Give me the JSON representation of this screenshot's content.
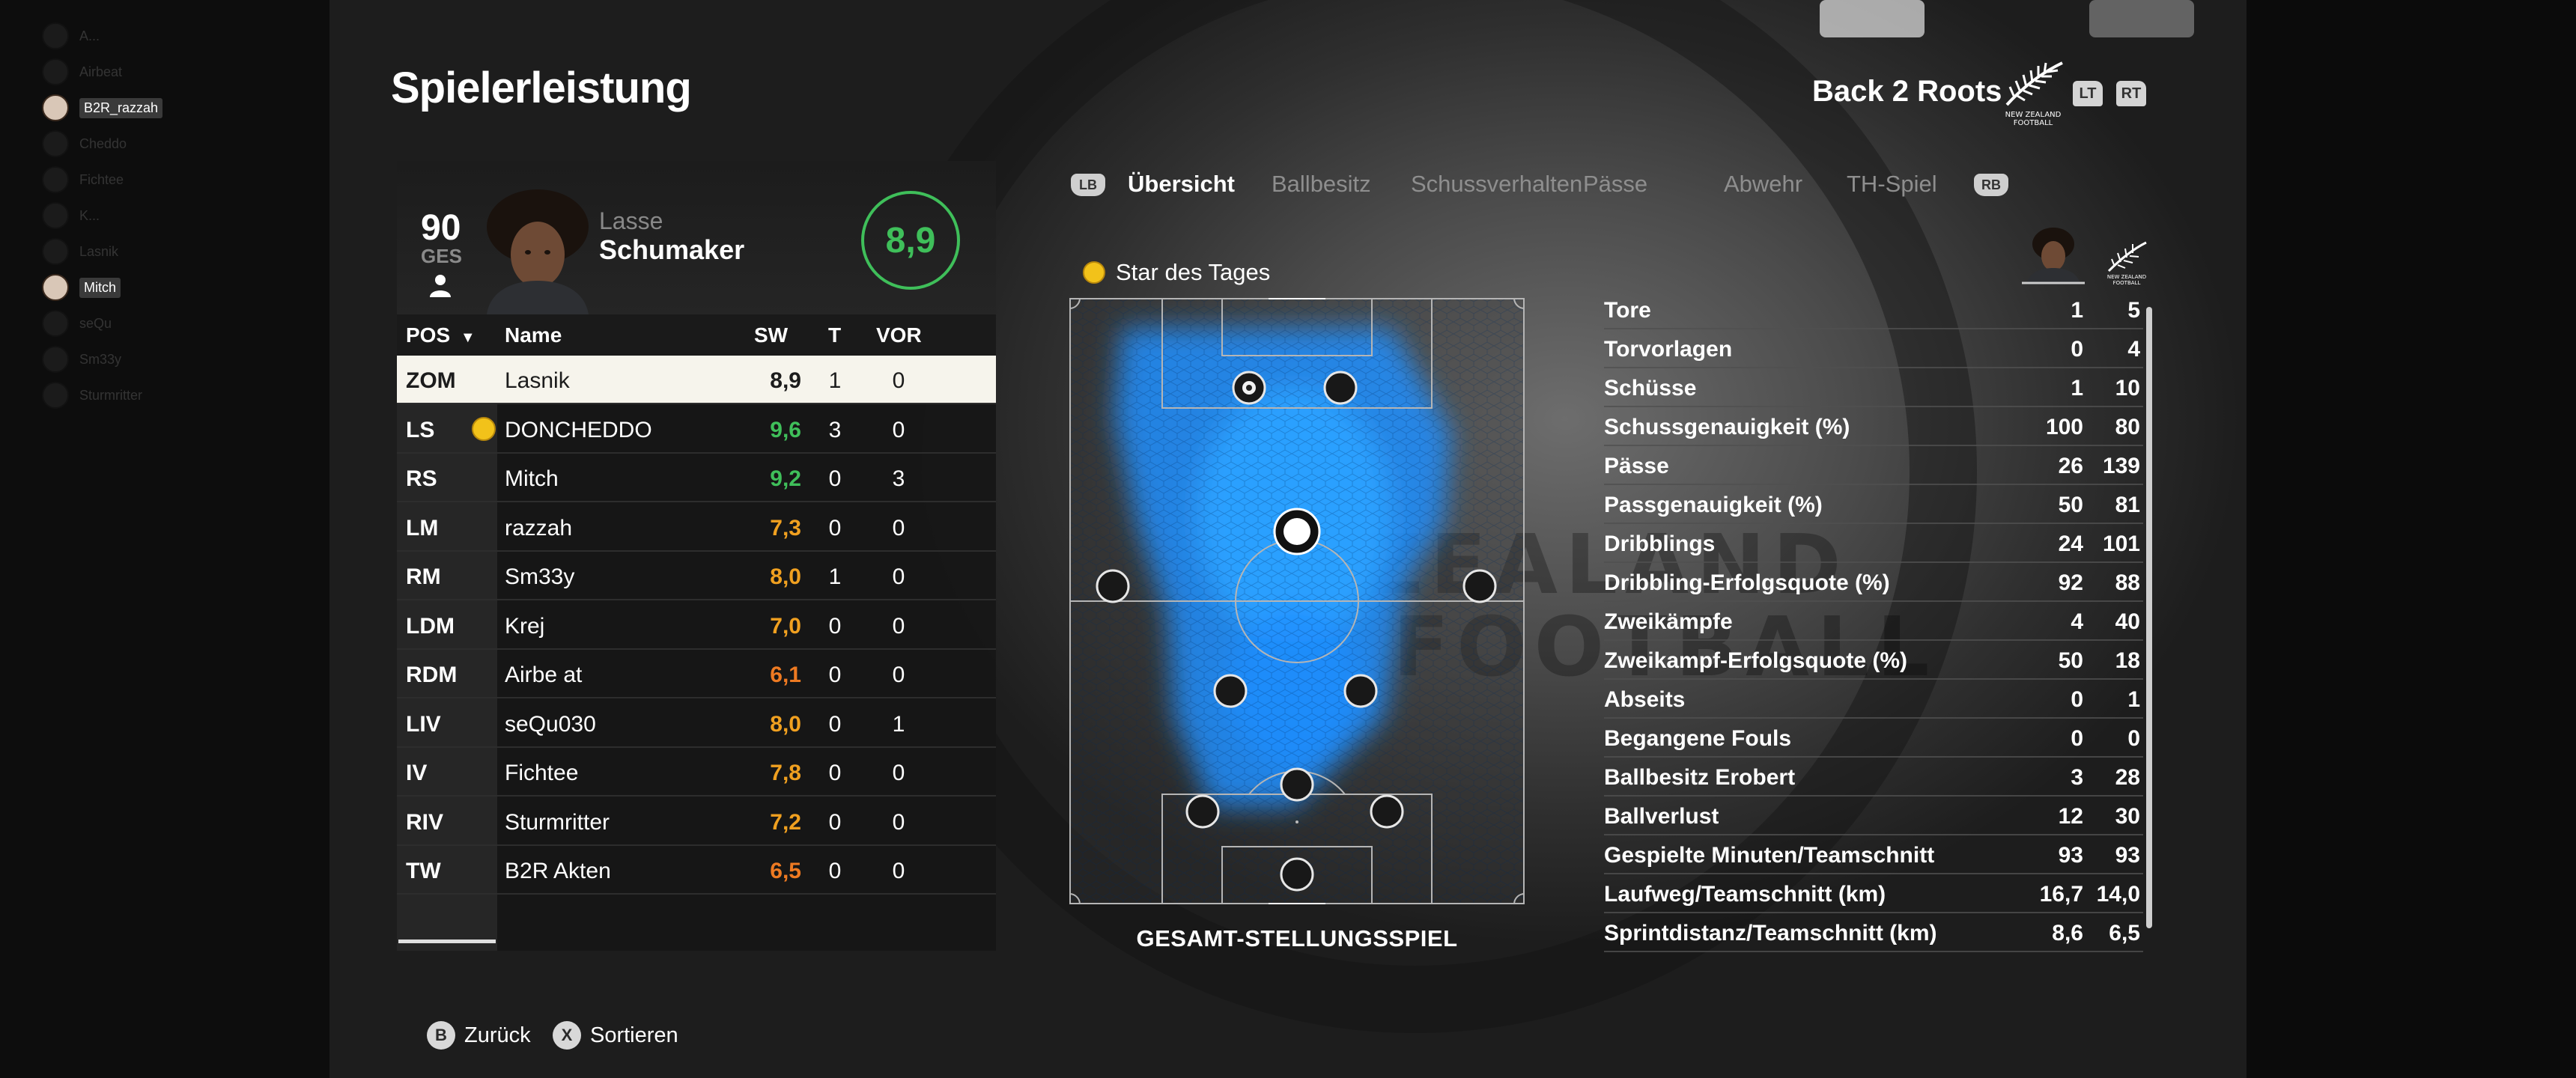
{
  "header": {
    "title": "Spielerleistung",
    "team_name": "Back 2 Roots",
    "logo_text_1": "NEW ZEALAND",
    "logo_text_2": "FOOTBALL",
    "trigger_left": "LT",
    "trigger_right": "RT"
  },
  "friends": [
    {
      "name": "A..."
    },
    {
      "name": "Airbeat"
    },
    {
      "name": "B2R_razzah"
    },
    {
      "name": "Cheddo"
    },
    {
      "name": "Fichtee"
    },
    {
      "name": "K..."
    },
    {
      "name": "Lasnik"
    },
    {
      "name": "Mitch"
    },
    {
      "name": "seQu"
    },
    {
      "name": "Sm33y"
    },
    {
      "name": "Sturmritter"
    }
  ],
  "player": {
    "overall": "90",
    "overall_label": "GES",
    "first_name": "Lasse",
    "last_name": "Schumaker",
    "rating": "8,9"
  },
  "table": {
    "headers": {
      "pos": "POS",
      "name": "Name",
      "sw": "SW",
      "t": "T",
      "vor": "VOR"
    },
    "rows": [
      {
        "pos": "ZOM",
        "name": "Lasnik",
        "sw": "8,9",
        "t": "1",
        "vor": "0",
        "sw_color": "#1c1c1c",
        "star": false,
        "selected": true
      },
      {
        "pos": "LS",
        "name": "DONCHEDDO",
        "sw": "9,6",
        "t": "3",
        "vor": "0",
        "sw_color": "#3fbf5a",
        "star": true,
        "selected": false
      },
      {
        "pos": "RS",
        "name": "Mitch",
        "sw": "9,2",
        "t": "0",
        "vor": "3",
        "sw_color": "#3fbf5a",
        "star": false,
        "selected": false
      },
      {
        "pos": "LM",
        "name": "razzah",
        "sw": "7,3",
        "t": "0",
        "vor": "0",
        "sw_color": "#f0a020",
        "star": false,
        "selected": false
      },
      {
        "pos": "RM",
        "name": "Sm33y",
        "sw": "8,0",
        "t": "1",
        "vor": "0",
        "sw_color": "#f0a020",
        "star": false,
        "selected": false
      },
      {
        "pos": "LDM",
        "name": "Krej",
        "sw": "7,0",
        "t": "0",
        "vor": "0",
        "sw_color": "#f0a020",
        "star": false,
        "selected": false
      },
      {
        "pos": "RDM",
        "name": "Airbe at",
        "sw": "6,1",
        "t": "0",
        "vor": "0",
        "sw_color": "#ee7a22",
        "star": false,
        "selected": false
      },
      {
        "pos": "LIV",
        "name": "seQu030",
        "sw": "8,0",
        "t": "0",
        "vor": "1",
        "sw_color": "#f0a020",
        "star": false,
        "selected": false
      },
      {
        "pos": "IV",
        "name": "Fichtee",
        "sw": "7,8",
        "t": "0",
        "vor": "0",
        "sw_color": "#f0a020",
        "star": false,
        "selected": false
      },
      {
        "pos": "RIV",
        "name": "Sturmritter",
        "sw": "7,2",
        "t": "0",
        "vor": "0",
        "sw_color": "#f0a020",
        "star": false,
        "selected": false
      },
      {
        "pos": "TW",
        "name": "B2R Akten",
        "sw": "6,5",
        "t": "0",
        "vor": "0",
        "sw_color": "#ee7a22",
        "star": false,
        "selected": false
      }
    ]
  },
  "tabs": {
    "bumper_left": "LB",
    "bumper_right": "RB",
    "items": [
      {
        "label": "Übersicht",
        "active": true
      },
      {
        "label": "Ballbesitz",
        "active": false
      },
      {
        "label": "Schussverhalten",
        "active": false
      },
      {
        "label": "Pässe",
        "active": false
      },
      {
        "label": "Abwehr",
        "active": false
      },
      {
        "label": "TH-Spiel",
        "active": false
      }
    ]
  },
  "star_of_match": "Star des Tages",
  "pitch_caption": "GESAMT-STELLUNGSSPIEL",
  "stats": [
    {
      "label": "Tore",
      "player": "1",
      "team": "5"
    },
    {
      "label": "Torvorlagen",
      "player": "0",
      "team": "4"
    },
    {
      "label": "Schüsse",
      "player": "1",
      "team": "10"
    },
    {
      "label": "Schussgenauigkeit (%)",
      "player": "100",
      "team": "80"
    },
    {
      "label": "Pässe",
      "player": "26",
      "team": "139"
    },
    {
      "label": "Passgenauigkeit (%)",
      "player": "50",
      "team": "81"
    },
    {
      "label": "Dribblings",
      "player": "24",
      "team": "101"
    },
    {
      "label": "Dribbling-Erfolgsquote (%)",
      "player": "92",
      "team": "88"
    },
    {
      "label": "Zweikämpfe",
      "player": "4",
      "team": "40"
    },
    {
      "label": "Zweikampf-Erfolgsquote (%)",
      "player": "50",
      "team": "18"
    },
    {
      "label": "Abseits",
      "player": "0",
      "team": "1"
    },
    {
      "label": "Begangene Fouls",
      "player": "0",
      "team": "0"
    },
    {
      "label": "Ballbesitz Erobert",
      "player": "3",
      "team": "28"
    },
    {
      "label": "Ballverlust",
      "player": "12",
      "team": "30"
    },
    {
      "label": "Gespielte Minuten/Teamschnitt",
      "player": "93",
      "team": "93"
    },
    {
      "label": "Laufweg/Teamschnitt (km)",
      "player": "16,7",
      "team": "14,0"
    },
    {
      "label": "Sprintdistanz/Teamschnitt (km)",
      "player": "8,6",
      "team": "6,5"
    }
  ],
  "footer": {
    "back_glyph": "B",
    "back_label": "Zurück",
    "sort_glyph": "X",
    "sort_label": "Sortieren"
  },
  "colors": {
    "heatmap": "#1e8fff",
    "rating_green": "#3fbf5a",
    "rating_orange": "#f0a020",
    "star_yellow": "#f2c21a"
  }
}
